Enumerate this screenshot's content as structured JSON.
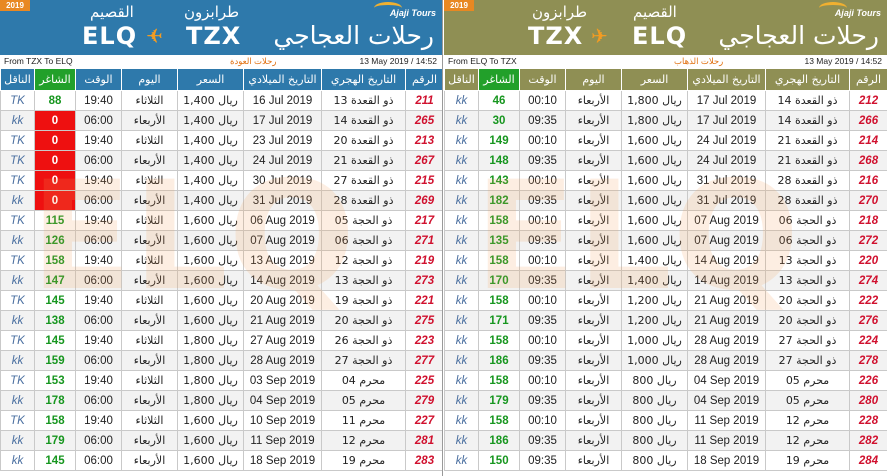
{
  "colors": {
    "blue_header": "#2e79ab",
    "olive_header": "#8f8f54",
    "seats_green": "#17961f",
    "sold_out_red": "#ee1010",
    "flight_number_red": "#d0102e",
    "plane_orange": "#f39c22",
    "year_badge": "#e88822"
  },
  "panels": [
    {
      "year": "2019",
      "logo_en": "Ajaji Tours",
      "logo_ar": "رحلات العجاجي",
      "left_city_ar": "القصيم",
      "left_city_code": "ELQ",
      "right_city_ar": "طرابزون",
      "right_city_code": "TZX",
      "plane_icon": "airplane-icon",
      "route_en": "From TZX To ELQ",
      "route_ar": "رحلات العودة",
      "timestamp": "13 May 2019 / 14:52",
      "watermark": "ELQ",
      "headers": {
        "carrier": "الناقل",
        "seats": "الشاغر",
        "time": "الوقت",
        "day": "اليوم",
        "price": "السعر",
        "greg": "التاريخ الميلادي",
        "hijri": "التاريخ الهجري",
        "num": "الرقم"
      },
      "rows": [
        {
          "carrier": "TK",
          "seats": "88",
          "soldout": false,
          "time": "19:40",
          "day": "الثلاثاء",
          "price": "1,400 ريال",
          "greg": "16 Jul 2019",
          "hijri": "13 ذو القعدة",
          "num": "211"
        },
        {
          "carrier": "kk",
          "seats": "0",
          "soldout": true,
          "time": "06:00",
          "day": "الأربعاء",
          "price": "1,400 ريال",
          "greg": "17 Jul 2019",
          "hijri": "14 ذو القعدة",
          "num": "265"
        },
        {
          "carrier": "TK",
          "seats": "0",
          "soldout": true,
          "time": "19:40",
          "day": "الثلاثاء",
          "price": "1,400 ريال",
          "greg": "23 Jul 2019",
          "hijri": "20 ذو القعدة",
          "num": "213"
        },
        {
          "carrier": "TK",
          "seats": "0",
          "soldout": true,
          "time": "06:00",
          "day": "الأربعاء",
          "price": "1,400 ريال",
          "greg": "24 Jul 2019",
          "hijri": "21 ذو القعدة",
          "num": "267"
        },
        {
          "carrier": "TK",
          "seats": "0",
          "soldout": true,
          "time": "19:40",
          "day": "الثلاثاء",
          "price": "1,400 ريال",
          "greg": "30 Jul 2019",
          "hijri": "27 ذو القعدة",
          "num": "215"
        },
        {
          "carrier": "kk",
          "seats": "0",
          "soldout": true,
          "time": "06:00",
          "day": "الأربعاء",
          "price": "1,400 ريال",
          "greg": "31 Jul 2019",
          "hijri": "28 ذو القعدة",
          "num": "269"
        },
        {
          "carrier": "TK",
          "seats": "115",
          "soldout": false,
          "time": "19:40",
          "day": "الثلاثاء",
          "price": "1,600 ريال",
          "greg": "06 Aug 2019",
          "hijri": "05 ذو الحجة",
          "num": "217"
        },
        {
          "carrier": "kk",
          "seats": "126",
          "soldout": false,
          "time": "06:00",
          "day": "الأربعاء",
          "price": "1,600 ريال",
          "greg": "07 Aug 2019",
          "hijri": "06 ذو الحجة",
          "num": "271"
        },
        {
          "carrier": "TK",
          "seats": "158",
          "soldout": false,
          "time": "19:40",
          "day": "الثلاثاء",
          "price": "1,600 ريال",
          "greg": "13 Aug 2019",
          "hijri": "12 ذو الحجة",
          "num": "219"
        },
        {
          "carrier": "kk",
          "seats": "147",
          "soldout": false,
          "time": "06:00",
          "day": "الأربعاء",
          "price": "1,600 ريال",
          "greg": "14 Aug 2019",
          "hijri": "13 ذو الحجة",
          "num": "273"
        },
        {
          "carrier": "TK",
          "seats": "145",
          "soldout": false,
          "time": "19:40",
          "day": "الثلاثاء",
          "price": "1,600 ريال",
          "greg": "20 Aug 2019",
          "hijri": "19 ذو الحجة",
          "num": "221"
        },
        {
          "carrier": "kk",
          "seats": "138",
          "soldout": false,
          "time": "06:00",
          "day": "الأربعاء",
          "price": "1,600 ريال",
          "greg": "21 Aug 2019",
          "hijri": "20 ذو الحجة",
          "num": "275"
        },
        {
          "carrier": "TK",
          "seats": "145",
          "soldout": false,
          "time": "19:40",
          "day": "الثلاثاء",
          "price": "1,800 ريال",
          "greg": "27 Aug 2019",
          "hijri": "26 ذو الحجة",
          "num": "223"
        },
        {
          "carrier": "kk",
          "seats": "159",
          "soldout": false,
          "time": "06:00",
          "day": "الأربعاء",
          "price": "1,800 ريال",
          "greg": "28 Aug 2019",
          "hijri": "27 ذو الحجة",
          "num": "277"
        },
        {
          "carrier": "TK",
          "seats": "153",
          "soldout": false,
          "time": "19:40",
          "day": "الثلاثاء",
          "price": "1,800 ريال",
          "greg": "03 Sep 2019",
          "hijri": "04 محرم",
          "num": "225"
        },
        {
          "carrier": "kk",
          "seats": "178",
          "soldout": false,
          "time": "06:00",
          "day": "الأربعاء",
          "price": "1,800 ريال",
          "greg": "04 Sep 2019",
          "hijri": "05 محرم",
          "num": "279"
        },
        {
          "carrier": "TK",
          "seats": "158",
          "soldout": false,
          "time": "19:40",
          "day": "الثلاثاء",
          "price": "1,600 ريال",
          "greg": "10 Sep 2019",
          "hijri": "11 محرم",
          "num": "227"
        },
        {
          "carrier": "kk",
          "seats": "179",
          "soldout": false,
          "time": "06:00",
          "day": "الأربعاء",
          "price": "1,600 ريال",
          "greg": "11 Sep 2019",
          "hijri": "12 محرم",
          "num": "281"
        },
        {
          "carrier": "kk",
          "seats": "145",
          "soldout": false,
          "time": "06:00",
          "day": "الأربعاء",
          "price": "1,600 ريال",
          "greg": "18 Sep 2019",
          "hijri": "19 محرم",
          "num": "283"
        }
      ]
    },
    {
      "year": "2019",
      "logo_en": "Ajaji Tours",
      "logo_ar": "رحلات العجاجي",
      "left_city_ar": "طرابزون",
      "left_city_code": "TZX",
      "right_city_ar": "القصيم",
      "right_city_code": "ELQ",
      "plane_icon": "airplane-icon",
      "route_en": "From ELQ To TZX",
      "route_ar": "رحلات الذهاب",
      "timestamp": "13 May 2019 / 14:52",
      "watermark": "ELQ",
      "headers": {
        "carrier": "الناقل",
        "seats": "الشاغر",
        "time": "الوقت",
        "day": "اليوم",
        "price": "السعر",
        "greg": "التاريخ الميلادي",
        "hijri": "التاريخ الهجري",
        "num": "الرقم"
      },
      "rows": [
        {
          "carrier": "kk",
          "seats": "46",
          "soldout": false,
          "time": "00:10",
          "day": "الأربعاء",
          "price": "1,800 ريال",
          "greg": "17 Jul 2019",
          "hijri": "14 ذو القعدة",
          "num": "212"
        },
        {
          "carrier": "kk",
          "seats": "30",
          "soldout": false,
          "time": "09:35",
          "day": "الأربعاء",
          "price": "1,800 ريال",
          "greg": "17 Jul 2019",
          "hijri": "14 ذو القعدة",
          "num": "266"
        },
        {
          "carrier": "kk",
          "seats": "149",
          "soldout": false,
          "time": "00:10",
          "day": "الأربعاء",
          "price": "1,600 ريال",
          "greg": "24 Jul 2019",
          "hijri": "21 ذو القعدة",
          "num": "214"
        },
        {
          "carrier": "kk",
          "seats": "148",
          "soldout": false,
          "time": "09:35",
          "day": "الأربعاء",
          "price": "1,600 ريال",
          "greg": "24 Jul 2019",
          "hijri": "21 ذو القعدة",
          "num": "268"
        },
        {
          "carrier": "kk",
          "seats": "143",
          "soldout": false,
          "time": "00:10",
          "day": "الأربعاء",
          "price": "1,600 ريال",
          "greg": "31 Jul 2019",
          "hijri": "28 ذو القعدة",
          "num": "216"
        },
        {
          "carrier": "kk",
          "seats": "182",
          "soldout": false,
          "time": "09:35",
          "day": "الأربعاء",
          "price": "1,600 ريال",
          "greg": "31 Jul 2019",
          "hijri": "28 ذو القعدة",
          "num": "270"
        },
        {
          "carrier": "kk",
          "seats": "158",
          "soldout": false,
          "time": "00:10",
          "day": "الأربعاء",
          "price": "1,600 ريال",
          "greg": "07 Aug 2019",
          "hijri": "06 ذو الحجة",
          "num": "218"
        },
        {
          "carrier": "kk",
          "seats": "135",
          "soldout": false,
          "time": "09:35",
          "day": "الأربعاء",
          "price": "1,600 ريال",
          "greg": "07 Aug 2019",
          "hijri": "06 ذو الحجة",
          "num": "272"
        },
        {
          "carrier": "kk",
          "seats": "158",
          "soldout": false,
          "time": "00:10",
          "day": "الأربعاء",
          "price": "1,400 ريال",
          "greg": "14 Aug 2019",
          "hijri": "13 ذو الحجة",
          "num": "220"
        },
        {
          "carrier": "kk",
          "seats": "170",
          "soldout": false,
          "time": "09:35",
          "day": "الأربعاء",
          "price": "1,400 ريال",
          "greg": "14 Aug 2019",
          "hijri": "13 ذو الحجة",
          "num": "274"
        },
        {
          "carrier": "kk",
          "seats": "158",
          "soldout": false,
          "time": "00:10",
          "day": "الأربعاء",
          "price": "1,200 ريال",
          "greg": "21 Aug 2019",
          "hijri": "20 ذو الحجة",
          "num": "222"
        },
        {
          "carrier": "kk",
          "seats": "171",
          "soldout": false,
          "time": "09:35",
          "day": "الأربعاء",
          "price": "1,200 ريال",
          "greg": "21 Aug 2019",
          "hijri": "20 ذو الحجة",
          "num": "276"
        },
        {
          "carrier": "kk",
          "seats": "158",
          "soldout": false,
          "time": "00:10",
          "day": "الأربعاء",
          "price": "1,000 ريال",
          "greg": "28 Aug 2019",
          "hijri": "27 ذو الحجة",
          "num": "224"
        },
        {
          "carrier": "kk",
          "seats": "186",
          "soldout": false,
          "time": "09:35",
          "day": "الأربعاء",
          "price": "1,000 ريال",
          "greg": "28 Aug 2019",
          "hijri": "27 ذو الحجة",
          "num": "278"
        },
        {
          "carrier": "kk",
          "seats": "158",
          "soldout": false,
          "time": "00:10",
          "day": "الأربعاء",
          "price": "800 ريال",
          "greg": "04 Sep 2019",
          "hijri": "05 محرم",
          "num": "226"
        },
        {
          "carrier": "kk",
          "seats": "179",
          "soldout": false,
          "time": "09:35",
          "day": "الأربعاء",
          "price": "800 ريال",
          "greg": "04 Sep 2019",
          "hijri": "05 محرم",
          "num": "280"
        },
        {
          "carrier": "kk",
          "seats": "158",
          "soldout": false,
          "time": "00:10",
          "day": "الأربعاء",
          "price": "800 ريال",
          "greg": "11 Sep 2019",
          "hijri": "12 محرم",
          "num": "228"
        },
        {
          "carrier": "kk",
          "seats": "186",
          "soldout": false,
          "time": "09:35",
          "day": "الأربعاء",
          "price": "800 ريال",
          "greg": "11 Sep 2019",
          "hijri": "12 محرم",
          "num": "282"
        },
        {
          "carrier": "kk",
          "seats": "150",
          "soldout": false,
          "time": "09:35",
          "day": "الأربعاء",
          "price": "800 ريال",
          "greg": "18 Sep 2019",
          "hijri": "19 محرم",
          "num": "284"
        }
      ]
    }
  ]
}
